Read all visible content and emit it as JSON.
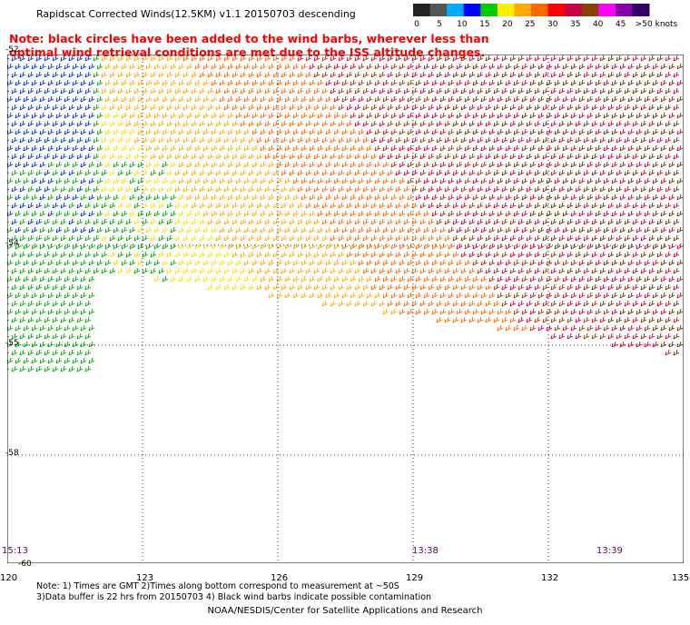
{
  "title": "Rapidscat Corrected Winds(12.5KM) v1.1 20150703 descending",
  "note_red": "Note: black circles have been added to the wind barbs, wherever less than\n    optimal wind retrieval conditions are met due to the ISS altitude changes.",
  "legend": {
    "labels": [
      "0",
      "5",
      "10",
      "15",
      "20",
      "25",
      "30",
      "35",
      "40",
      "45",
      ">50 knots"
    ],
    "colors": [
      "#222222",
      "#555555",
      "#00aaff",
      "#0000ff",
      "#00cc00",
      "#ffee00",
      "#ffaa00",
      "#ff6600",
      "#ff0000",
      "#cc0044",
      "#884400",
      "#ff00ff",
      "#8800aa",
      "#330066"
    ]
  },
  "map": {
    "lon_ticks": [
      "120",
      "123",
      "126",
      "129",
      "132",
      "135"
    ],
    "lat_ticks": [
      "-52",
      "-54",
      "-55",
      "-58",
      "-60"
    ],
    "times": [
      {
        "label": "15:13",
        "lon": 120
      },
      {
        "label": "13:38",
        "lon": 129
      },
      {
        "label": "13:39",
        "lon": 133
      }
    ]
  },
  "footnote": "Note: 1) Times are GMT 2)Times along bottom correspond to measurement at ~50S\n    3)Data buffer is 22 hrs from 20150703 4) Black wind barbs indicate possible contamination",
  "credit": "NOAA/NESDIS/Center for Satellite Applications and Research"
}
